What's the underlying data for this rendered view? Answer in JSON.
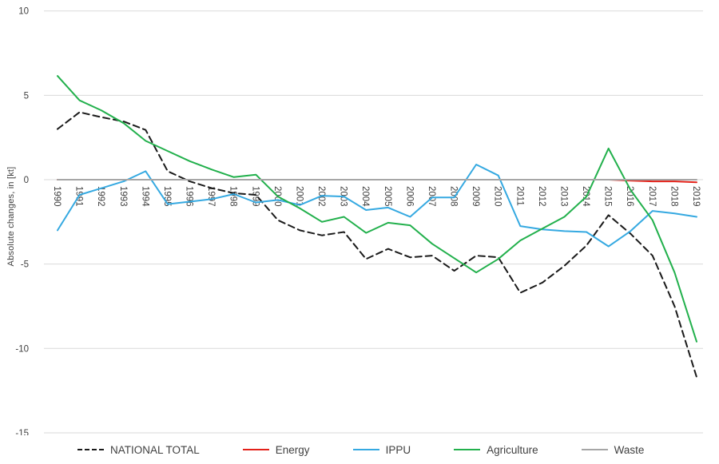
{
  "chart_data": {
    "type": "line",
    "title": "",
    "ylabel": "Absolute changes, in [kt]",
    "xlabel": "",
    "ylim": [
      -15,
      10
    ],
    "yticks": [
      10,
      5,
      0,
      -5,
      -10,
      -15
    ],
    "grid": "horizontal",
    "legend_position": "bottom",
    "x": [
      1990,
      1991,
      1992,
      1993,
      1994,
      1995,
      1996,
      1997,
      1998,
      1999,
      2000,
      2001,
      2002,
      2003,
      2004,
      2005,
      2006,
      2007,
      2008,
      2009,
      2010,
      2011,
      2012,
      2013,
      2014,
      2015,
      2016,
      2017,
      2018,
      2019
    ],
    "series": [
      {
        "name": "NATIONAL TOTAL",
        "color": "#1a1a1a",
        "style": "dashed",
        "values": [
          3.0,
          4.0,
          3.7,
          3.45,
          2.95,
          0.5,
          -0.1,
          -0.5,
          -0.8,
          -0.9,
          -2.4,
          -3.0,
          -3.3,
          -3.1,
          -4.7,
          -4.1,
          -4.6,
          -4.5,
          -5.4,
          -4.5,
          -4.6,
          -6.7,
          -6.1,
          -5.1,
          -3.9,
          -2.1,
          -3.2,
          -4.5,
          -7.5,
          -11.7
        ]
      },
      {
        "name": "Energy",
        "color": "#e32119",
        "style": "solid",
        "values": [
          0,
          0,
          0,
          0,
          0,
          0,
          0,
          0,
          0,
          0,
          0,
          0,
          0,
          0,
          0,
          0,
          0,
          0,
          0,
          0,
          0,
          0,
          0,
          0,
          0,
          0,
          -0.05,
          -0.1,
          -0.1,
          -0.15
        ]
      },
      {
        "name": "IPPU",
        "color": "#35a9e1",
        "style": "solid",
        "values": [
          -3.0,
          -0.9,
          -0.5,
          -0.1,
          0.5,
          -1.45,
          -1.3,
          -1.15,
          -0.85,
          -1.35,
          -1.2,
          -1.5,
          -0.95,
          -1.0,
          -1.8,
          -1.65,
          -2.2,
          -1.05,
          -1.05,
          0.9,
          0.25,
          -2.75,
          -2.95,
          -3.05,
          -3.1,
          -3.95,
          -3.05,
          -1.85,
          -2.0,
          -2.2
        ]
      },
      {
        "name": "Agriculture",
        "color": "#22b04c",
        "style": "solid",
        "values": [
          6.15,
          4.7,
          4.1,
          3.35,
          2.3,
          1.7,
          1.1,
          0.6,
          0.15,
          0.3,
          -1.0,
          -1.7,
          -2.5,
          -2.2,
          -3.15,
          -2.55,
          -2.7,
          -3.8,
          -4.65,
          -5.5,
          -4.7,
          -3.6,
          -2.9,
          -2.2,
          -1.0,
          1.85,
          -0.6,
          -2.4,
          -5.5,
          -9.6
        ]
      },
      {
        "name": "Waste",
        "color": "#a6a6a6",
        "style": "solid",
        "values": [
          0,
          0,
          0,
          0,
          0,
          0,
          0,
          0,
          0,
          0,
          0,
          0,
          0,
          0,
          0,
          0,
          0,
          0,
          0,
          0,
          0,
          0,
          0,
          0,
          0,
          0,
          0,
          0,
          0,
          0
        ]
      }
    ]
  },
  "colors": {
    "gridline": "#d9d9d9",
    "tick_text": "#3f3f3f",
    "background": "#ffffff"
  }
}
